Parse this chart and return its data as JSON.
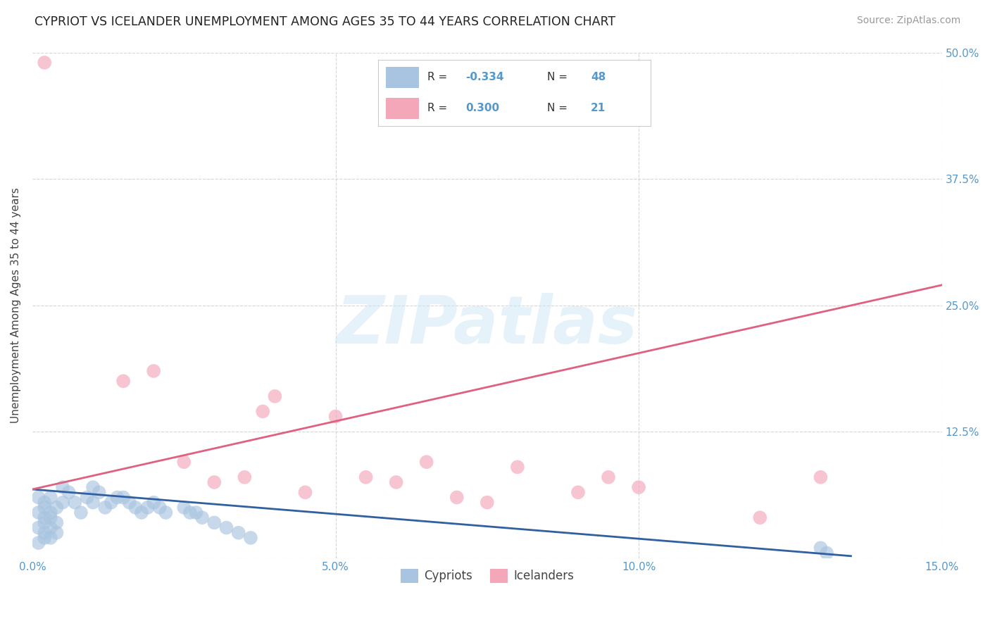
{
  "title": "CYPRIOT VS ICELANDER UNEMPLOYMENT AMONG AGES 35 TO 44 YEARS CORRELATION CHART",
  "source": "Source: ZipAtlas.com",
  "ylabel": "Unemployment Among Ages 35 to 44 years",
  "xlim": [
    0.0,
    0.15
  ],
  "ylim": [
    0.0,
    0.5
  ],
  "xticks": [
    0.0,
    0.05,
    0.1,
    0.15
  ],
  "yticks": [
    0.0,
    0.125,
    0.25,
    0.375,
    0.5
  ],
  "xticklabels": [
    "0.0%",
    "5.0%",
    "10.0%",
    "15.0%"
  ],
  "yticklabels_right": [
    "",
    "12.5%",
    "25.0%",
    "37.5%",
    "50.0%"
  ],
  "cypriot_color": "#a8c4e0",
  "icelander_color": "#f4a7b9",
  "cypriot_line_color": "#3060a0",
  "icelander_line_color": "#e06080",
  "background_color": "#ffffff",
  "cypriot_x": [
    0.001,
    0.001,
    0.001,
    0.001,
    0.002,
    0.002,
    0.002,
    0.002,
    0.002,
    0.002,
    0.003,
    0.003,
    0.003,
    0.003,
    0.003,
    0.004,
    0.004,
    0.004,
    0.005,
    0.005,
    0.006,
    0.007,
    0.008,
    0.009,
    0.01,
    0.01,
    0.011,
    0.012,
    0.013,
    0.014,
    0.015,
    0.016,
    0.017,
    0.018,
    0.019,
    0.02,
    0.021,
    0.022,
    0.025,
    0.026,
    0.027,
    0.028,
    0.03,
    0.032,
    0.034,
    0.036,
    0.13,
    0.131
  ],
  "cypriot_y": [
    0.03,
    0.045,
    0.06,
    0.015,
    0.025,
    0.04,
    0.055,
    0.02,
    0.035,
    0.05,
    0.045,
    0.03,
    0.06,
    0.02,
    0.04,
    0.05,
    0.035,
    0.025,
    0.07,
    0.055,
    0.065,
    0.055,
    0.045,
    0.06,
    0.07,
    0.055,
    0.065,
    0.05,
    0.055,
    0.06,
    0.06,
    0.055,
    0.05,
    0.045,
    0.05,
    0.055,
    0.05,
    0.045,
    0.05,
    0.045,
    0.045,
    0.04,
    0.035,
    0.03,
    0.025,
    0.02,
    0.01,
    0.005
  ],
  "icelander_x": [
    0.002,
    0.015,
    0.02,
    0.025,
    0.03,
    0.035,
    0.038,
    0.04,
    0.045,
    0.05,
    0.055,
    0.06,
    0.065,
    0.07,
    0.075,
    0.08,
    0.09,
    0.095,
    0.1,
    0.12,
    0.13
  ],
  "icelander_y": [
    0.49,
    0.175,
    0.185,
    0.095,
    0.075,
    0.08,
    0.145,
    0.16,
    0.065,
    0.14,
    0.08,
    0.075,
    0.095,
    0.06,
    0.055,
    0.09,
    0.065,
    0.08,
    0.07,
    0.04,
    0.08
  ],
  "cyp_line_x": [
    0.0,
    0.135
  ],
  "cyp_line_y": [
    0.068,
    0.002
  ],
  "ice_line_x": [
    0.0,
    0.15
  ],
  "ice_line_y": [
    0.068,
    0.27
  ]
}
